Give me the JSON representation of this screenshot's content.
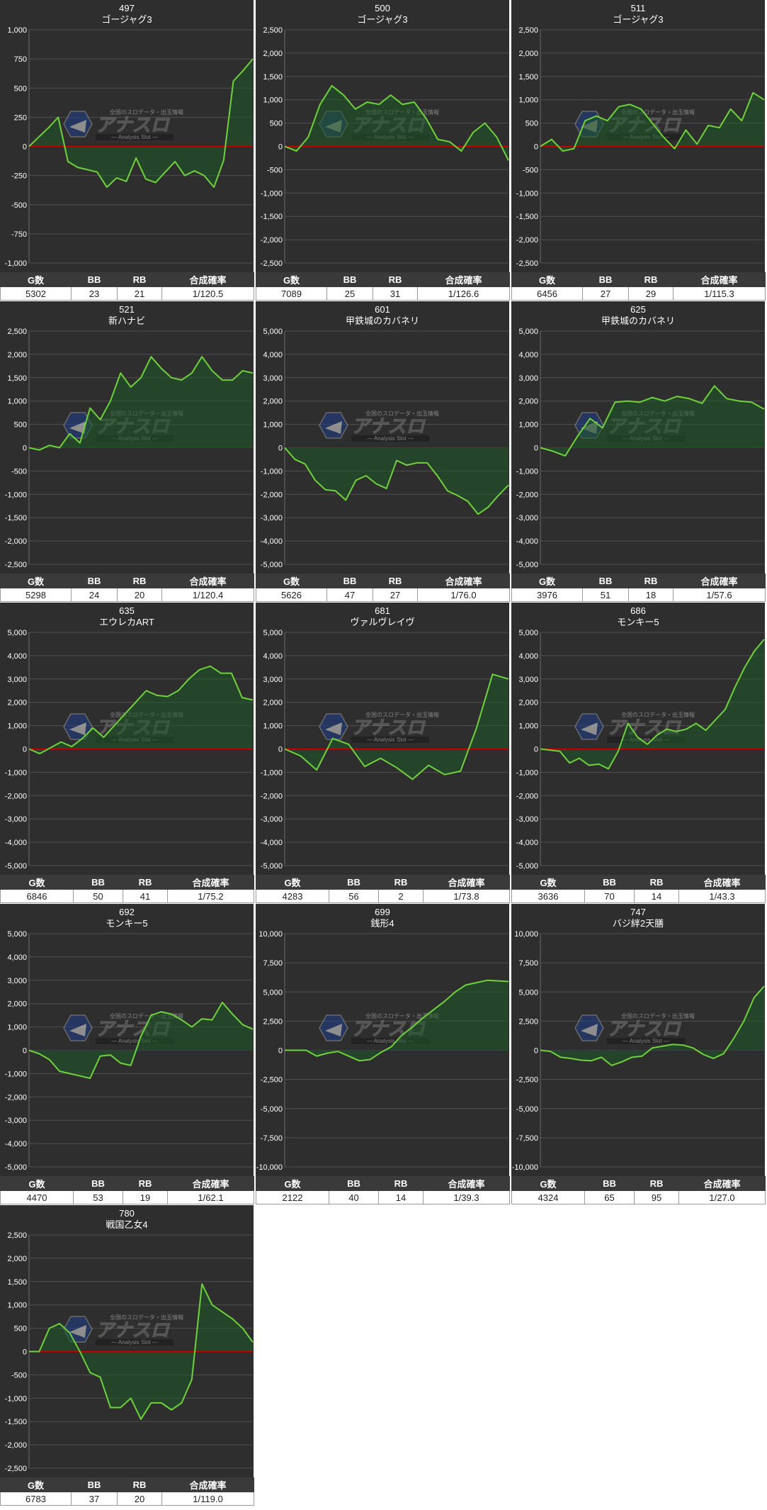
{
  "watermark": {
    "main": "アナスロ",
    "sub": "Analysis Slot",
    "tag": "全国のスロデータ・出玉情報"
  },
  "colors": {
    "background": "#2e2e2e",
    "line": "#6fd23c",
    "fill": "#1f5a28",
    "zero": "#cc0000",
    "grid": "#4e4e4e"
  },
  "stats_header": [
    "G数",
    "BB",
    "RB",
    "合成確率"
  ],
  "chart_data": [
    {
      "type": "area",
      "number": "497",
      "title": "ゴージャグ3",
      "ylim": [
        -1000,
        1000
      ],
      "yticks": [
        1000,
        750,
        500,
        250,
        0,
        -250,
        -500,
        -750,
        -1000
      ],
      "values": [
        0,
        80,
        160,
        250,
        -130,
        -180,
        -200,
        -220,
        -350,
        -270,
        -300,
        -100,
        -280,
        -310,
        -220,
        -130,
        -250,
        -210,
        -250,
        -350,
        -120,
        560,
        650,
        750
      ],
      "stats": [
        "5302",
        "23",
        "21",
        "1/120.5"
      ]
    },
    {
      "type": "area",
      "number": "500",
      "title": "ゴージャグ3",
      "ylim": [
        -2500,
        2500
      ],
      "yticks": [
        2500,
        2000,
        1500,
        1000,
        500,
        0,
        -500,
        -1000,
        -1500,
        -2000,
        -2500
      ],
      "values": [
        0,
        -100,
        200,
        900,
        1300,
        1100,
        800,
        950,
        900,
        1100,
        900,
        950,
        600,
        150,
        100,
        -100,
        300,
        500,
        200,
        -300
      ],
      "stats": [
        "7089",
        "25",
        "31",
        "1/126.6"
      ]
    },
    {
      "type": "area",
      "number": "511",
      "title": "ゴージャグ3",
      "ylim": [
        -2500,
        2500
      ],
      "yticks": [
        2500,
        2000,
        1500,
        1000,
        500,
        0,
        -500,
        -1000,
        -1500,
        -2000,
        -2500
      ],
      "values": [
        0,
        150,
        -100,
        -50,
        550,
        650,
        550,
        850,
        900,
        800,
        500,
        200,
        -50,
        350,
        50,
        450,
        400,
        800,
        550,
        1150,
        1000
      ],
      "stats": [
        "6456",
        "27",
        "29",
        "1/115.3"
      ]
    },
    {
      "type": "area",
      "number": "521",
      "title": "新ハナビ",
      "ylim": [
        -2500,
        2500
      ],
      "yticks": [
        2500,
        2000,
        1500,
        1000,
        500,
        0,
        -500,
        -1000,
        -1500,
        -2000,
        -2500
      ],
      "values": [
        0,
        -50,
        50,
        0,
        300,
        100,
        850,
        600,
        1000,
        1600,
        1300,
        1500,
        1950,
        1700,
        1500,
        1450,
        1600,
        1950,
        1650,
        1450,
        1450,
        1650,
        1600
      ],
      "stats": [
        "5298",
        "24",
        "20",
        "1/120.4"
      ]
    },
    {
      "type": "area",
      "number": "601",
      "title": "甲鉄城のカバネリ",
      "ylim": [
        -5000,
        5000
      ],
      "yticks": [
        5000,
        4000,
        3000,
        2000,
        1000,
        0,
        -1000,
        -2000,
        -3000,
        -4000,
        -5000
      ],
      "values": [
        0,
        -500,
        -700,
        -1400,
        -1800,
        -1850,
        -2250,
        -1400,
        -1200,
        -1550,
        -1750,
        -550,
        -750,
        -650,
        -650,
        -1200,
        -1850,
        -2050,
        -2300,
        -2850,
        -2550,
        -2050,
        -1600
      ],
      "stats": [
        "5626",
        "47",
        "27",
        "1/76.0"
      ]
    },
    {
      "type": "area",
      "number": "625",
      "title": "甲鉄城のカバネリ",
      "ylim": [
        -5000,
        5000
      ],
      "yticks": [
        5000,
        4000,
        3000,
        2000,
        1000,
        0,
        -1000,
        -2000,
        -3000,
        -4000,
        -5000
      ],
      "values": [
        0,
        -150,
        -350,
        500,
        1250,
        850,
        1950,
        2000,
        1950,
        2150,
        2000,
        2200,
        2100,
        1900,
        2650,
        2100,
        2000,
        1950,
        1650
      ],
      "stats": [
        "3976",
        "51",
        "18",
        "1/57.6"
      ]
    },
    {
      "type": "area",
      "number": "635",
      "title": "エウレカART",
      "ylim": [
        -5000,
        5000
      ],
      "yticks": [
        5000,
        4000,
        3000,
        2000,
        1000,
        0,
        -1000,
        -2000,
        -3000,
        -4000,
        -5000
      ],
      "values": [
        0,
        -200,
        50,
        300,
        100,
        450,
        900,
        500,
        1000,
        1500,
        2000,
        2500,
        2300,
        2250,
        2500,
        3000,
        3400,
        3550,
        3250,
        3250,
        2200,
        2100
      ],
      "stats": [
        "6846",
        "50",
        "41",
        "1/75.2"
      ]
    },
    {
      "type": "area",
      "number": "681",
      "title": "ヴァルヴレイヴ",
      "ylim": [
        -5000,
        5000
      ],
      "yticks": [
        5000,
        4000,
        3000,
        2000,
        1000,
        0,
        -1000,
        -2000,
        -3000,
        -4000,
        -5000
      ],
      "values": [
        0,
        -300,
        -900,
        450,
        200,
        -750,
        -400,
        -800,
        -1300,
        -700,
        -1100,
        -950,
        900,
        3200,
        3000
      ],
      "stats": [
        "4283",
        "56",
        "2",
        "1/73.8"
      ]
    },
    {
      "type": "area",
      "number": "686",
      "title": "モンキー5",
      "ylim": [
        -5000,
        5000
      ],
      "yticks": [
        5000,
        4000,
        3000,
        2000,
        1000,
        0,
        -1000,
        -2000,
        -3000,
        -4000,
        -5000
      ],
      "values": [
        0,
        -50,
        -100,
        -600,
        -400,
        -700,
        -650,
        -850,
        -100,
        1100,
        500,
        200,
        600,
        850,
        750,
        850,
        1100,
        800,
        1250,
        1700,
        2650,
        3500,
        4200,
        4700
      ],
      "stats": [
        "3636",
        "70",
        "14",
        "1/43.3"
      ]
    },
    {
      "type": "area",
      "number": "692",
      "title": "モンキー5",
      "ylim": [
        -5000,
        5000
      ],
      "yticks": [
        5000,
        4000,
        3000,
        2000,
        1000,
        0,
        -1000,
        -2000,
        -3000,
        -4000,
        -5000
      ],
      "values": [
        0,
        -150,
        -400,
        -900,
        -1000,
        -1100,
        -1200,
        -250,
        -200,
        -550,
        -650,
        600,
        1500,
        1650,
        1550,
        1300,
        1000,
        1350,
        1300,
        2050,
        1550,
        1100,
        900
      ],
      "stats": [
        "4470",
        "53",
        "19",
        "1/62.1"
      ]
    },
    {
      "type": "area",
      "number": "699",
      "title": "銭形4",
      "ylim": [
        -10000,
        10000
      ],
      "yticks": [
        10000,
        7500,
        5000,
        2500,
        0,
        -2500,
        -5000,
        -7500,
        -10000
      ],
      "values": [
        0,
        0,
        0,
        -500,
        -250,
        -100,
        -500,
        -900,
        -800,
        -200,
        300,
        1300,
        2000,
        2800,
        3500,
        4200,
        5000,
        5600,
        5800,
        6000,
        5950,
        5900
      ],
      "stats": [
        "2122",
        "40",
        "14",
        "1/39.3"
      ]
    },
    {
      "type": "area",
      "number": "747",
      "title": "バジ絆2天膳",
      "ylim": [
        -10000,
        10000
      ],
      "yticks": [
        10000,
        7500,
        5000,
        2500,
        0,
        -2500,
        -5000,
        -7500,
        -10000
      ],
      "values": [
        0,
        -100,
        -600,
        -700,
        -850,
        -900,
        -600,
        -1300,
        -1000,
        -600,
        -500,
        200,
        350,
        500,
        450,
        200,
        -350,
        -700,
        -300,
        1000,
        2500,
        4500,
        5500
      ],
      "stats": [
        "4324",
        "65",
        "95",
        "1/27.0"
      ]
    },
    {
      "type": "area",
      "number": "780",
      "title": "戦国乙女4",
      "ylim": [
        -2500,
        2500
      ],
      "yticks": [
        2500,
        2000,
        1500,
        1000,
        500,
        0,
        -500,
        -1000,
        -1500,
        -2000,
        -2500
      ],
      "values": [
        0,
        0,
        500,
        600,
        400,
        0,
        -450,
        -550,
        -1200,
        -1200,
        -1000,
        -1450,
        -1100,
        -1100,
        -1250,
        -1100,
        -600,
        1450,
        1000,
        850,
        700,
        500,
        200
      ],
      "stats": [
        "6783",
        "37",
        "20",
        "1/119.0"
      ]
    }
  ]
}
